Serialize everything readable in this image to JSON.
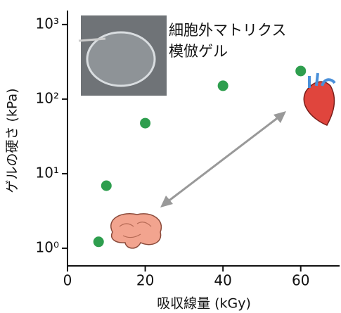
{
  "chart_data": {
    "type": "scatter",
    "annotation": [
      "細胞外マトリクス",
      "模倣ゲル"
    ],
    "x_label": "吸収線量 (kGy)",
    "y_label": "ゲルの硬さ (kPa)",
    "x": [
      8,
      10,
      20,
      40,
      60
    ],
    "values": [
      1.22,
      6.9,
      47.6,
      151,
      238
    ],
    "color": "#2e9e4e",
    "log_y": true,
    "grid": false,
    "xlim": [
      0,
      70
    ],
    "xticks": [
      0,
      20,
      40,
      60
    ],
    "ylim": [
      0.58,
      1540
    ],
    "yticks": [
      {
        "value": 1,
        "label": "10⁰"
      },
      {
        "value": 10,
        "label": "10¹"
      },
      {
        "value": 100,
        "label": "10²"
      },
      {
        "value": 1000,
        "label": "10³"
      }
    ]
  }
}
